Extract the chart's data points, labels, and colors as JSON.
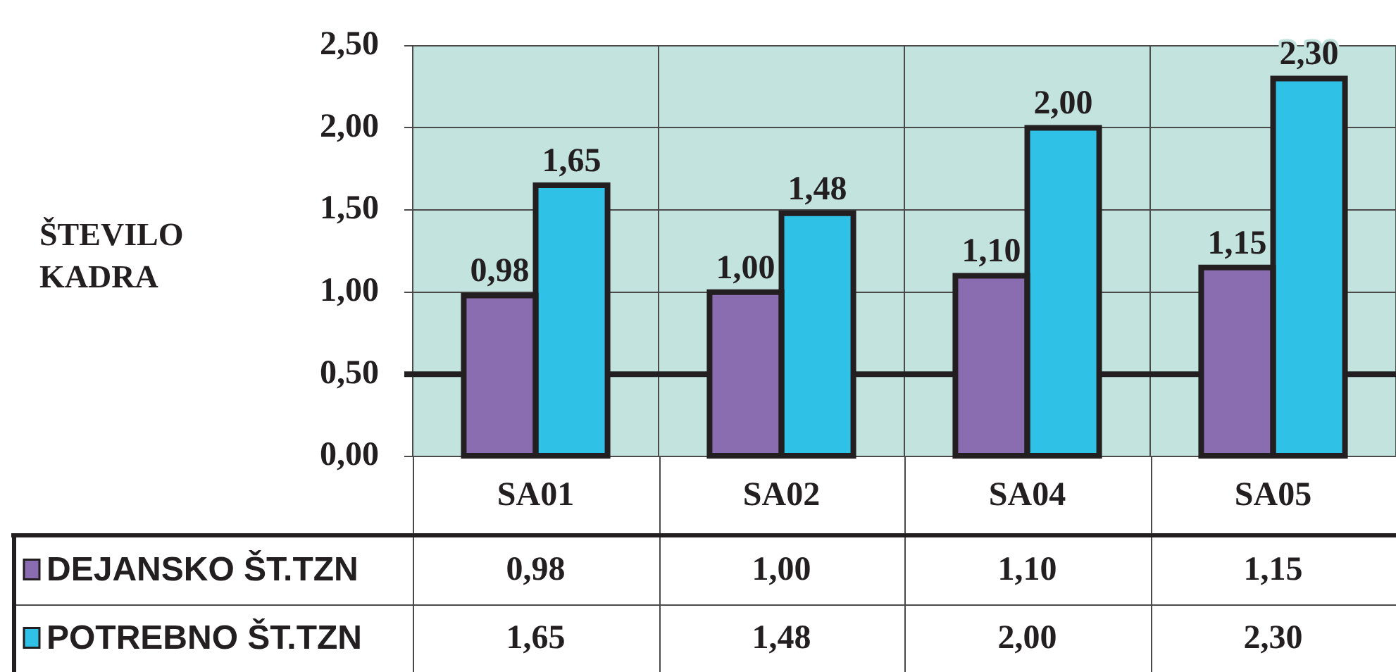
{
  "chart_data": {
    "type": "bar",
    "ylabel": "ŠTEVILO KADRA",
    "categories": [
      "SA01",
      "SA02",
      "SA04",
      "SA05"
    ],
    "series": [
      {
        "name": "DEJANSKO ŠT.TZN",
        "color": "#8a6db0",
        "values": [
          0.98,
          1.0,
          1.1,
          1.15
        ],
        "value_labels": [
          "0,98",
          "1,00",
          "1,10",
          "1,15"
        ]
      },
      {
        "name": "POTREBNO ŠT.TZN",
        "color": "#30c1e7",
        "values": [
          1.65,
          1.48,
          2.0,
          2.3
        ],
        "value_labels": [
          "1,65",
          "1,48",
          "2,00",
          "2,30"
        ]
      }
    ],
    "ylim": [
      0,
      2.5
    ],
    "yticks": [
      {
        "value": 0,
        "label": "0,00"
      },
      {
        "value": 0.5,
        "label": "0,50"
      },
      {
        "value": 1,
        "label": "1,00"
      },
      {
        "value": 1.5,
        "label": "1,50"
      },
      {
        "value": 2,
        "label": "2,00"
      },
      {
        "value": 2.5,
        "label": "2,50"
      }
    ],
    "grid": true,
    "legend": "bottom",
    "ref_lines": [
      {
        "axis": "y",
        "value": 0.5,
        "color": "#231f20"
      }
    ]
  }
}
